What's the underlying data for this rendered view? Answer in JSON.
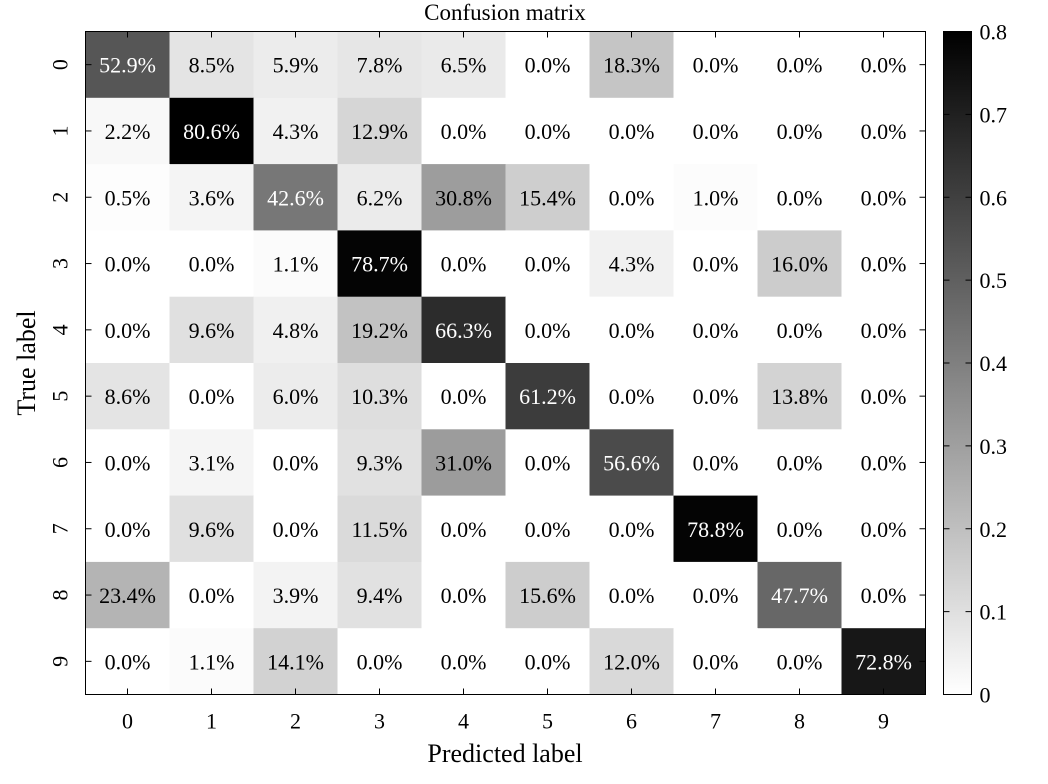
{
  "chart_data": {
    "type": "heatmap",
    "title": "Confusion matrix",
    "xlabel": "Predicted label",
    "ylabel": "True label",
    "x_categories": [
      "0",
      "1",
      "2",
      "3",
      "4",
      "5",
      "6",
      "7",
      "8",
      "9"
    ],
    "y_categories": [
      "0",
      "1",
      "2",
      "3",
      "4",
      "5",
      "6",
      "7",
      "8",
      "9"
    ],
    "colormap": "gray_reversed",
    "color_low": "#ffffff",
    "color_high": "#000000",
    "colorbar": {
      "range": [
        0,
        0.8
      ],
      "ticks": [
        "0",
        "0.1",
        "0.2",
        "0.3",
        "0.4",
        "0.5",
        "0.6",
        "0.7",
        "0.8"
      ]
    },
    "values": [
      [
        52.9,
        8.5,
        5.9,
        7.8,
        6.5,
        0.0,
        18.3,
        0.0,
        0.0,
        0.0
      ],
      [
        2.2,
        80.6,
        4.3,
        12.9,
        0.0,
        0.0,
        0.0,
        0.0,
        0.0,
        0.0
      ],
      [
        0.5,
        3.6,
        42.6,
        6.2,
        30.8,
        15.4,
        0.0,
        1.0,
        0.0,
        0.0
      ],
      [
        0.0,
        0.0,
        1.1,
        78.7,
        0.0,
        0.0,
        4.3,
        0.0,
        16.0,
        0.0
      ],
      [
        0.0,
        9.6,
        4.8,
        19.2,
        66.3,
        0.0,
        0.0,
        0.0,
        0.0,
        0.0
      ],
      [
        8.6,
        0.0,
        6.0,
        10.3,
        0.0,
        61.2,
        0.0,
        0.0,
        13.8,
        0.0
      ],
      [
        0.0,
        3.1,
        0.0,
        9.3,
        31.0,
        0.0,
        56.6,
        0.0,
        0.0,
        0.0
      ],
      [
        0.0,
        9.6,
        0.0,
        11.5,
        0.0,
        0.0,
        0.0,
        78.8,
        0.0,
        0.0
      ],
      [
        23.4,
        0.0,
        3.9,
        9.4,
        0.0,
        15.6,
        0.0,
        0.0,
        47.7,
        0.0
      ],
      [
        0.0,
        1.1,
        14.1,
        0.0,
        0.0,
        0.0,
        12.0,
        0.0,
        0.0,
        72.8
      ]
    ],
    "value_format": "percent",
    "grid": false
  }
}
